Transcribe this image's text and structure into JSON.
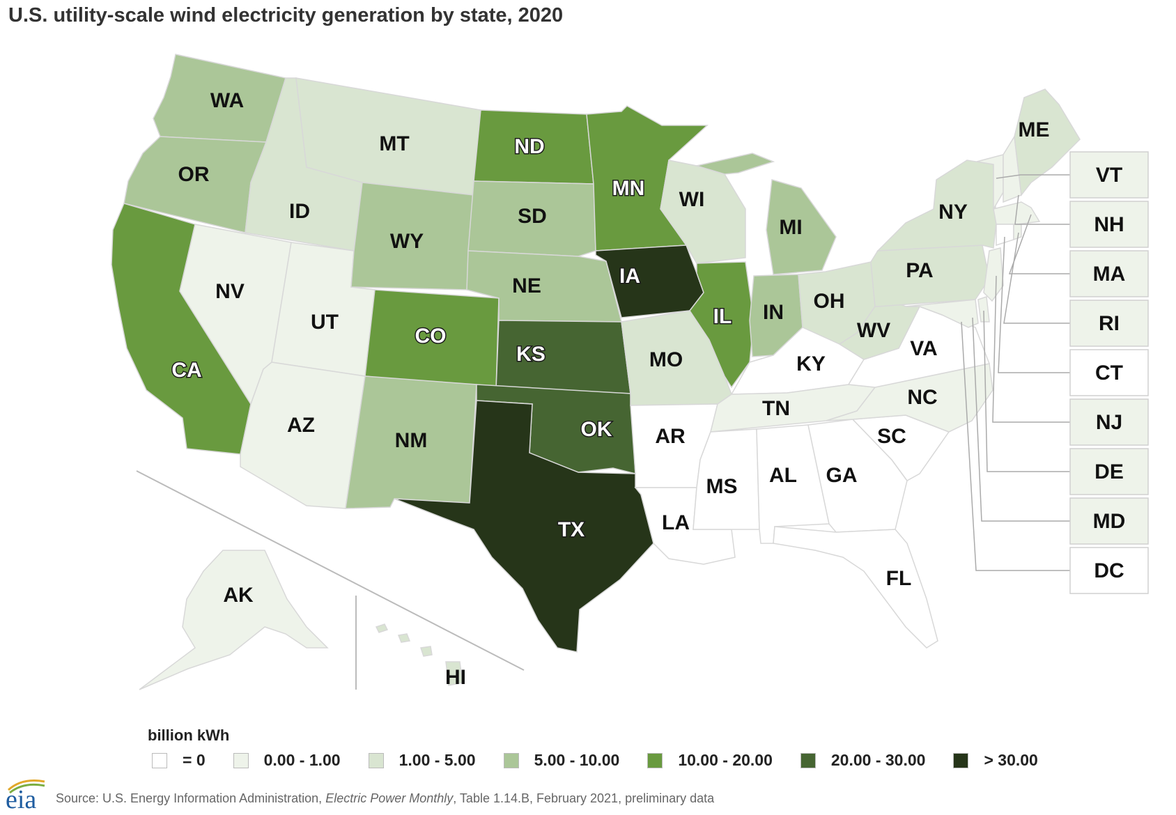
{
  "title": "U.S. utility-scale wind electricity generation by state, 2020",
  "legend": {
    "title": "billion kWh",
    "items": [
      {
        "label": "= 0",
        "color": "#ffffff"
      },
      {
        "label": "0.00 - 1.00",
        "color": "#eef3ea"
      },
      {
        "label": "1.00 - 5.00",
        "color": "#d9e5d1"
      },
      {
        "label": "5.00 - 10.00",
        "color": "#abc698"
      },
      {
        "label": "10.00 - 20.00",
        "color": "#699a3f"
      },
      {
        "label": "20.00 - 30.00",
        "color": "#466532"
      },
      {
        "label": "> 30.00",
        "color": "#263519"
      }
    ]
  },
  "states": {
    "WA": 3,
    "OR": 3,
    "CA": 4,
    "ID": 2,
    "NV": 1,
    "AZ": 1,
    "UT": 1,
    "MT": 2,
    "WY": 3,
    "CO": 4,
    "NM": 3,
    "ND": 4,
    "SD": 3,
    "NE": 3,
    "KS": 5,
    "OK": 5,
    "TX": 6,
    "MN": 4,
    "IA": 6,
    "MO": 2,
    "AR": 0,
    "LA": 0,
    "WI": 2,
    "IL": 4,
    "MI": 3,
    "IN": 3,
    "OH": 2,
    "KY": 0,
    "TN": 1,
    "MS": 0,
    "AL": 0,
    "GA": 0,
    "FL": 0,
    "SC": 0,
    "NC": 1,
    "VA": 0,
    "WV": 2,
    "PA": 2,
    "NY": 2,
    "ME": 2,
    "AK": 1,
    "HI": 2,
    "VT": 1,
    "NH": 1,
    "MA": 1,
    "RI": 1,
    "CT": 0,
    "NJ": 1,
    "DE": 1,
    "MD": 1,
    "DC": 0
  },
  "source": {
    "prefix": "Source: U.S. Energy Information Administration, ",
    "publication": "Electric Power Monthly",
    "suffix": ", Table 1.14.B, February 2021, preliminary data"
  },
  "logo_text": "eia"
}
